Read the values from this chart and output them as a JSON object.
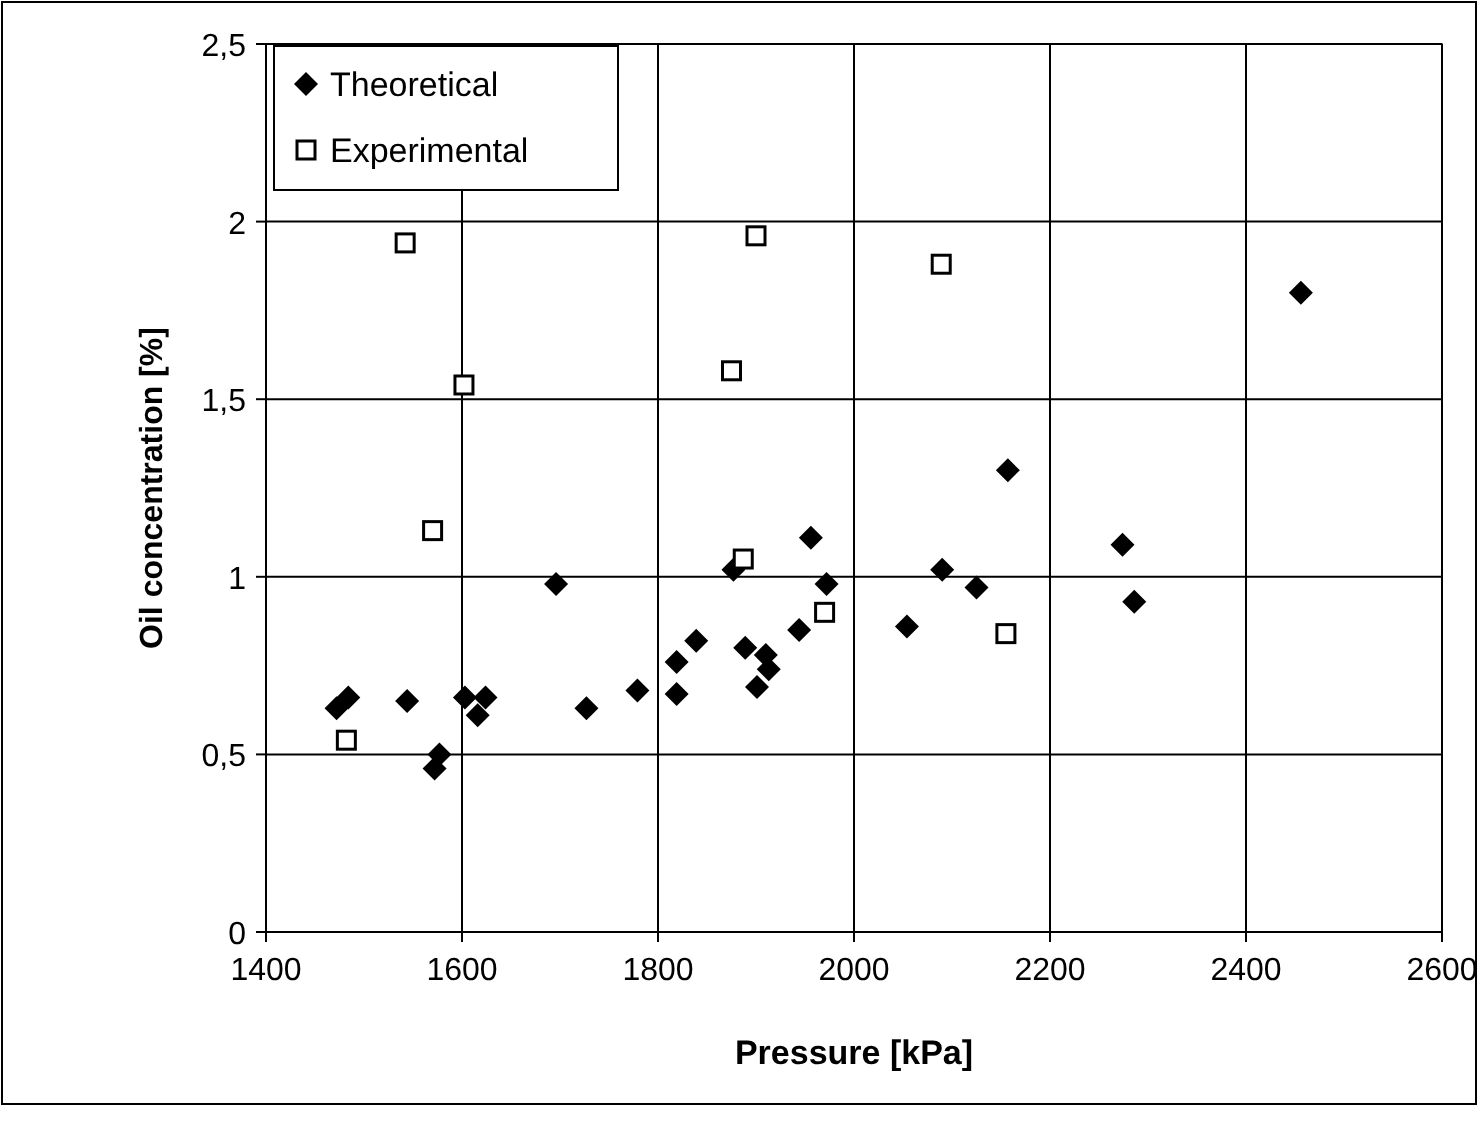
{
  "chart_data": {
    "type": "scatter",
    "xlabel": "Pressure [kPa]",
    "ylabel": "Oil concentration [%]",
    "xlim": [
      1400,
      2600
    ],
    "xticks": [
      1400,
      1600,
      1800,
      2000,
      2200,
      2400,
      2600
    ],
    "ylim": [
      0,
      2.5
    ],
    "yticks": [
      0,
      {
        "value": 0.5,
        "label": "0,5"
      },
      1,
      {
        "value": 1.5,
        "label": "1,5"
      },
      2,
      {
        "value": 2.5,
        "label": "2,5"
      }
    ],
    "grid": true,
    "legend": "top left",
    "series": [
      {
        "name": "Theoretical",
        "color": "#000000",
        "marker": "diamond",
        "x": [
          1472,
          1484,
          1544,
          1577,
          1572,
          1603,
          1624,
          1616,
          1696,
          1727,
          1779,
          1819,
          1819,
          1839,
          1877,
          1889,
          1910,
          1913,
          1901,
          1944,
          1956,
          1972,
          2054,
          2090,
          2125,
          2157,
          2274,
          2286,
          2456
        ],
        "values": [
          0.63,
          0.66,
          0.65,
          0.5,
          0.46,
          0.66,
          0.66,
          0.61,
          0.98,
          0.63,
          0.68,
          0.76,
          0.67,
          0.82,
          1.02,
          0.8,
          0.78,
          0.74,
          0.69,
          0.85,
          1.11,
          0.98,
          0.86,
          1.02,
          0.97,
          1.3,
          1.09,
          0.93,
          1.8
        ]
      },
      {
        "name": "Experimental",
        "color": "#000000",
        "marker": "square",
        "x": [
          1542,
          1602,
          1570,
          1482,
          1900,
          1875,
          1887,
          1970,
          2089,
          2155
        ],
        "values": [
          1.94,
          1.54,
          1.13,
          0.54,
          1.96,
          1.58,
          1.05,
          0.9,
          1.88,
          0.84
        ]
      }
    ]
  }
}
